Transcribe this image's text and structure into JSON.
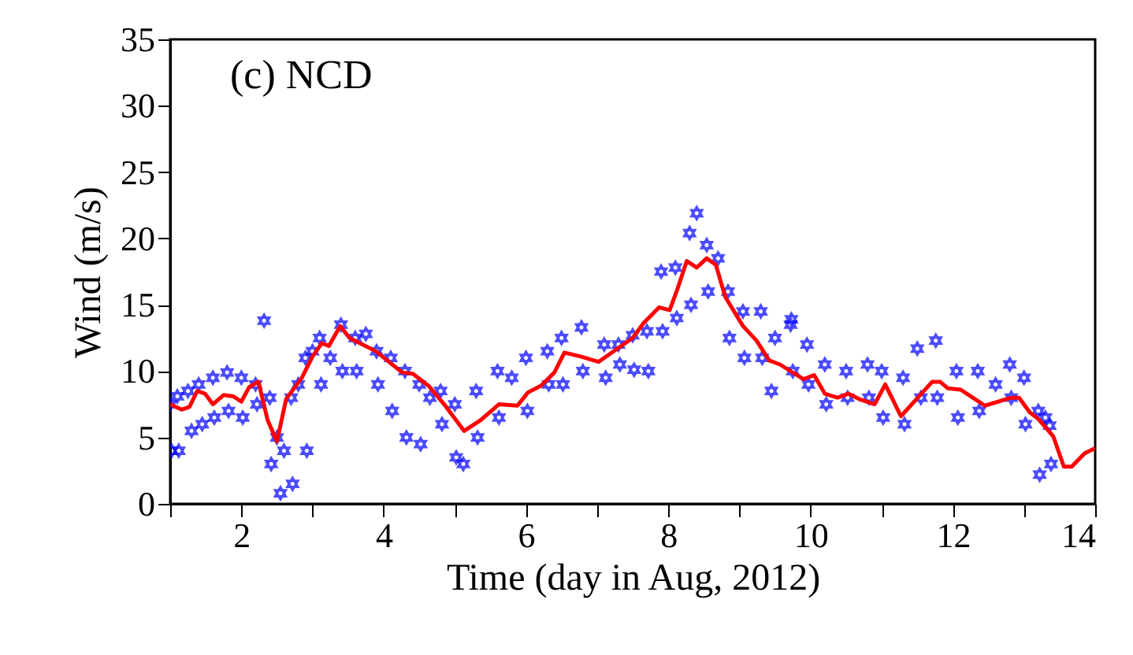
{
  "chart_data": {
    "type": "scatter",
    "xlabel": "Time (day in Aug, 2012)",
    "ylabel": "Wind (m/s)",
    "annotations": [
      "(c) NCD"
    ],
    "xlim": [
      1,
      14
    ],
    "ylim": [
      0,
      35
    ],
    "xticks": [
      {
        "value": 1,
        "label": null
      },
      2,
      {
        "value": 3,
        "label": null
      },
      4,
      {
        "value": 5,
        "label": null
      },
      6,
      {
        "value": 7,
        "label": null
      },
      8,
      {
        "value": 9,
        "label": null
      },
      10,
      {
        "value": 11,
        "label": null
      },
      12,
      {
        "value": 13,
        "label": null
      },
      14
    ],
    "yticks": [
      0,
      5,
      10,
      15,
      20,
      25,
      30,
      35
    ],
    "grid": false,
    "series": [
      {
        "color": "#0000ff",
        "marker": "star",
        "x": [
          1.0,
          1.02,
          1.1,
          1.12,
          1.25,
          1.3,
          1.4,
          1.45,
          1.6,
          1.62,
          1.8,
          1.82,
          2.0,
          2.02,
          2.2,
          2.22,
          2.32,
          2.4,
          2.42,
          2.5,
          2.55,
          2.6,
          2.7,
          2.72,
          2.8,
          2.9,
          2.92,
          3.0,
          3.1,
          3.12,
          3.25,
          3.4,
          3.42,
          3.6,
          3.62,
          3.75,
          3.9,
          3.92,
          4.1,
          4.12,
          4.3,
          4.32,
          4.5,
          4.52,
          4.65,
          4.8,
          4.82,
          5.0,
          5.02,
          5.12,
          5.3,
          5.32,
          5.6,
          5.62,
          5.8,
          6.0,
          6.02,
          6.3,
          6.32,
          6.5,
          6.52,
          6.78,
          6.8,
          7.1,
          7.12,
          7.3,
          7.32,
          7.5,
          7.52,
          7.7,
          7.72,
          7.9,
          7.92,
          8.1,
          8.12,
          8.3,
          8.32,
          8.4,
          8.54,
          8.56,
          8.7,
          8.84,
          8.86,
          9.05,
          9.07,
          9.3,
          9.32,
          9.45,
          9.5,
          9.72,
          9.73,
          9.75,
          9.95,
          9.97,
          10.2,
          10.22,
          10.5,
          10.52,
          10.8,
          10.82,
          11.0,
          11.02,
          11.3,
          11.32,
          11.5,
          11.55,
          11.76,
          11.78,
          12.05,
          12.07,
          12.35,
          12.37,
          12.6,
          12.8,
          12.82,
          13.0,
          13.02,
          13.2,
          13.22,
          13.3,
          13.36,
          13.38
        ],
        "values": [
          7.5,
          4.0,
          8.1,
          4.0,
          8.5,
          5.5,
          9.0,
          6.0,
          9.5,
          6.5,
          9.9,
          7.0,
          9.5,
          6.5,
          9.0,
          7.5,
          13.8,
          8.0,
          3.0,
          5.0,
          0.8,
          4.0,
          8.0,
          1.5,
          9.0,
          11.0,
          4.0,
          11.5,
          12.5,
          9.0,
          11.0,
          13.5,
          10.0,
          12.5,
          10.0,
          12.8,
          11.5,
          9.0,
          11.0,
          7.0,
          10.0,
          5.0,
          9.0,
          4.5,
          8.0,
          8.5,
          6.0,
          7.5,
          3.5,
          3.0,
          8.5,
          5.0,
          10.0,
          6.5,
          9.5,
          11.0,
          7.0,
          11.5,
          9.0,
          12.5,
          9.0,
          13.3,
          10.0,
          12.0,
          9.5,
          12.0,
          10.5,
          12.7,
          10.1,
          13.0,
          10.0,
          17.5,
          13.0,
          17.8,
          14.0,
          20.4,
          15.0,
          21.9,
          19.5,
          16.0,
          18.5,
          16.0,
          12.5,
          14.5,
          11.0,
          14.5,
          11.0,
          8.5,
          12.5,
          13.5,
          13.9,
          10.0,
          12.0,
          9.0,
          10.5,
          7.5,
          10.0,
          8.0,
          10.5,
          8.0,
          10.0,
          6.5,
          9.5,
          6.0,
          11.7,
          8.0,
          12.3,
          8.0,
          10.0,
          6.5,
          10.0,
          7.0,
          9.0,
          10.5,
          8.0,
          9.5,
          6.0,
          7.0,
          2.2,
          6.5,
          5.9,
          3.0
        ]
      },
      {
        "type": "line",
        "color": "#ff0000",
        "marker": "none",
        "line_style": "solid",
        "x": [
          1.0,
          1.16,
          1.27,
          1.38,
          1.49,
          1.6,
          1.75,
          1.89,
          2.0,
          2.11,
          2.24,
          2.37,
          2.5,
          2.63,
          2.85,
          3.0,
          3.13,
          3.23,
          3.39,
          3.52,
          3.89,
          4.26,
          4.41,
          4.63,
          4.85,
          5.13,
          5.36,
          5.62,
          5.88,
          6.03,
          6.21,
          6.4,
          6.54,
          6.77,
          7.02,
          7.5,
          7.65,
          7.87,
          8.02,
          8.13,
          8.26,
          8.4,
          8.54,
          8.67,
          8.8,
          9.05,
          9.24,
          9.42,
          9.57,
          9.9,
          10.05,
          10.2,
          10.38,
          10.53,
          10.68,
          10.9,
          11.05,
          11.27,
          11.71,
          11.82,
          11.93,
          12.11,
          12.45,
          12.82,
          12.93,
          13.08,
          13.2,
          13.41,
          13.56,
          13.67,
          13.85,
          14.0
        ],
        "values": [
          7.5,
          7.1,
          7.3,
          8.5,
          8.3,
          7.5,
          8.2,
          8.1,
          7.7,
          8.8,
          9.2,
          6.3,
          4.7,
          7.9,
          9.5,
          11.1,
          12.1,
          11.9,
          13.4,
          12.5,
          11.5,
          9.9,
          9.8,
          8.9,
          7.5,
          5.5,
          6.3,
          7.5,
          7.4,
          8.4,
          8.9,
          9.9,
          11.4,
          11.1,
          10.7,
          12.5,
          13.6,
          14.8,
          14.6,
          16.2,
          18.3,
          17.8,
          18.5,
          18.0,
          15.6,
          13.4,
          12.3,
          10.8,
          10.5,
          9.4,
          9.7,
          8.3,
          8.0,
          8.3,
          7.9,
          7.5,
          9.0,
          6.6,
          9.2,
          9.2,
          8.7,
          8.6,
          7.4,
          8.0,
          8.0,
          6.9,
          6.4,
          5.1,
          2.8,
          2.8,
          3.8,
          4.2
        ]
      }
    ]
  }
}
